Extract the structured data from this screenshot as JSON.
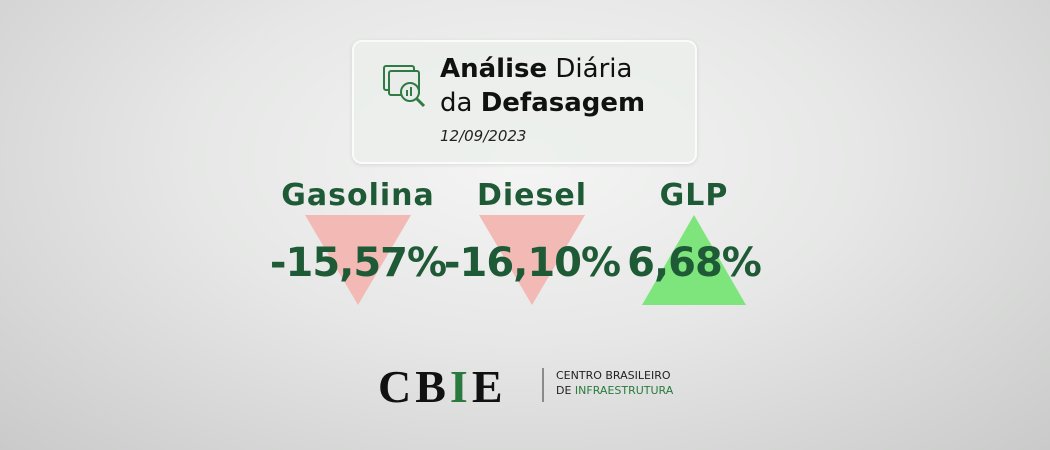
{
  "header": {
    "title": {
      "line1": [
        "Análise",
        "Diária"
      ],
      "line2": [
        "da",
        "Defasagem"
      ]
    },
    "date": "12/09/2023"
  },
  "items": [
    {
      "name": "Gasolina",
      "value": "-15,57%"
    },
    {
      "name": "Diesel",
      "value": "-16,10%"
    },
    {
      "name": "GLP",
      "value": "6,68%"
    }
  ],
  "logo": {
    "letters": [
      "C",
      "B",
      "I",
      "E"
    ],
    "line1": "CENTRO BRASILEIRO",
    "line2": [
      "DE",
      "INFRAESTRUTURA"
    ]
  }
}
